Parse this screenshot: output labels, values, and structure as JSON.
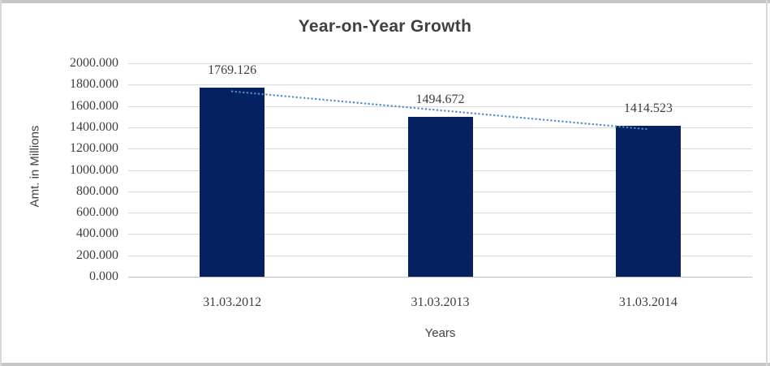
{
  "chart_data": {
    "type": "bar",
    "title": "Year-on-Year Growth",
    "xlabel": "Years",
    "ylabel": "Amt. in Millions",
    "categories": [
      "31.03.2012",
      "31.03.2013",
      "31.03.2014"
    ],
    "values": [
      1769.126,
      1494.672,
      1414.523
    ],
    "data_labels": [
      "1769.126",
      "1494.672",
      "1414.523"
    ],
    "ylim": [
      0,
      2000
    ],
    "ytick_step": 200,
    "ytick_labels": [
      "0.000",
      "200.000",
      "400.000",
      "600.000",
      "800.000",
      "1000.000",
      "1200.000",
      "1400.000",
      "1600.000",
      "1800.000",
      "2000.000"
    ],
    "grid": true,
    "legend": "none",
    "trendline": {
      "type": "linear",
      "style": "dotted"
    },
    "colors": {
      "bar": "#062160",
      "trendline": "#4e8bd0",
      "gridline": "#d9d9d9",
      "axis_line": "#bfbfbf",
      "tick_text": "#3d3d3d",
      "title_text": "#404040",
      "frame_top_bottom": "#c6c6c6",
      "frame_sides": "#d8d8d8"
    }
  }
}
